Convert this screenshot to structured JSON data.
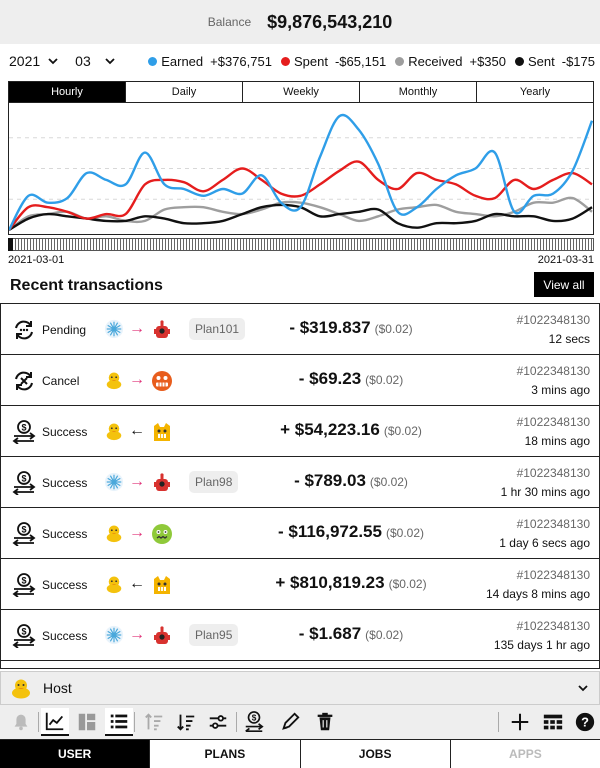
{
  "balance": {
    "label": "Balance",
    "value": "$9,876,543,210"
  },
  "filters": {
    "year": "2021",
    "month": "03"
  },
  "legend": [
    {
      "name": "Earned",
      "value": "+$376,751",
      "color": "#2f9ee8"
    },
    {
      "name": "Spent",
      "value": "-$65,151",
      "color": "#e51d1d"
    },
    {
      "name": "Received",
      "value": "+$350",
      "color": "#9e9e9e"
    },
    {
      "name": "Sent",
      "value": "-$175",
      "color": "#111111"
    }
  ],
  "period_tabs": [
    "Hourly",
    "Daily",
    "Weekly",
    "Monthly",
    "Yearly"
  ],
  "active_period": "Hourly",
  "chart_data": {
    "type": "line",
    "x_start": "2021-03-01",
    "x_end": "2021-03-31",
    "grid": "dashed horizontal",
    "series": [
      {
        "name": "Earned",
        "color": "#2f9ee8",
        "values": [
          0,
          15,
          12,
          14,
          25,
          22,
          20,
          34,
          20,
          18,
          15,
          18,
          16,
          24,
          12,
          10,
          32,
          50,
          44,
          29,
          8,
          10,
          18,
          24,
          27,
          34,
          8,
          15,
          16,
          26,
          48
        ]
      },
      {
        "name": "Spent",
        "color": "#e51d1d",
        "values": [
          0,
          10,
          10,
          8,
          5,
          7,
          7,
          20,
          22,
          21,
          17,
          22,
          27,
          22,
          16,
          15,
          20,
          26,
          30,
          22,
          18,
          25,
          22,
          20,
          15,
          14,
          22,
          18,
          22,
          25,
          20
        ]
      },
      {
        "name": "Received",
        "color": "#9e9e9e",
        "values": [
          0,
          6,
          7,
          8,
          5,
          6,
          4,
          4,
          9,
          10,
          10,
          8,
          7,
          9,
          12,
          12,
          10,
          7,
          4,
          6,
          9,
          10,
          11,
          8,
          7,
          6,
          8,
          12,
          12,
          14,
          8
        ]
      },
      {
        "name": "Sent",
        "color": "#111111",
        "values": [
          0,
          5,
          7,
          6,
          5,
          4,
          4,
          6,
          5,
          3,
          3,
          4,
          7,
          10,
          11,
          10,
          6,
          7,
          8,
          9,
          3,
          1,
          3,
          3,
          4,
          7,
          6,
          6,
          4,
          5,
          10
        ]
      }
    ]
  },
  "range": {
    "start": "2021-03-01",
    "end": "2021-03-31"
  },
  "recent": {
    "title": "Recent transactions",
    "view_all": "View all"
  },
  "transactions": [
    {
      "status": "Pending",
      "status_icon": "refresh-icon",
      "from": "snowflake",
      "dir": "→",
      "to": "robot",
      "plan": "Plan101",
      "amount": "- $319.837",
      "fee": "($0.02)",
      "id": "#1022348130",
      "time": "12 secs"
    },
    {
      "status": "Cancel",
      "status_icon": "cancel-icon",
      "from": "duck",
      "dir": "→",
      "to": "grimace",
      "plan": "",
      "amount": "- $69.23",
      "fee": "($0.02)",
      "id": "#1022348130",
      "time": "3 mins ago"
    },
    {
      "status": "Success",
      "status_icon": "money-transfer-icon",
      "from": "duck",
      "dir": "←",
      "to": "cat",
      "plan": "",
      "amount": "+ $54,223.16",
      "fee": "($0.02)",
      "id": "#1022348130",
      "time": "18 mins ago"
    },
    {
      "status": "Success",
      "status_icon": "money-transfer-icon",
      "from": "snowflake",
      "dir": "→",
      "to": "robot",
      "plan": "Plan98",
      "amount": "- $789.03",
      "fee": "($0.02)",
      "id": "#1022348130",
      "time": "1 hr 30 mins ago"
    },
    {
      "status": "Success",
      "status_icon": "money-transfer-icon",
      "from": "duck",
      "dir": "→",
      "to": "zombie",
      "plan": "",
      "amount": "- $116,972.55",
      "fee": "($0.02)",
      "id": "#1022348130",
      "time": "1 day 6 secs ago"
    },
    {
      "status": "Success",
      "status_icon": "money-transfer-icon",
      "from": "duck",
      "dir": "←",
      "to": "cat",
      "plan": "",
      "amount": "+ $810,819.23",
      "fee": "($0.02)",
      "id": "#1022348130",
      "time": "14 days 8 mins ago"
    },
    {
      "status": "Success",
      "status_icon": "money-transfer-icon",
      "from": "snowflake",
      "dir": "→",
      "to": "robot",
      "plan": "Plan95",
      "amount": "- $1.687",
      "fee": "($0.02)",
      "id": "#1022348130",
      "time": "135 days 1 hr ago"
    }
  ],
  "host": {
    "name": "Host",
    "icon": "duck-icon"
  },
  "toolbar": [
    "bell-icon",
    "line-chart-icon",
    "dashboard-icon",
    "list-icon",
    "sort-asc-icon",
    "sort-desc-icon",
    "sliders-icon",
    "money-transfer-icon",
    "pencil-icon",
    "trash-icon",
    "plus-icon",
    "grid-icon",
    "help-icon"
  ],
  "nav": [
    {
      "label": "USER",
      "state": "active"
    },
    {
      "label": "PLANS",
      "state": "normal"
    },
    {
      "label": "JOBS",
      "state": "normal"
    },
    {
      "label": "APPS",
      "state": "disabled"
    }
  ]
}
